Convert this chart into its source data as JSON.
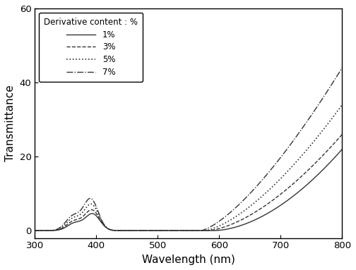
{
  "title": "",
  "xlabel": "Wavelength (nm)",
  "ylabel": "Transmittance",
  "xlim": [
    300,
    800
  ],
  "ylim": [
    -2,
    60
  ],
  "yticks": [
    0,
    20,
    40,
    60
  ],
  "xticks": [
    300,
    400,
    500,
    600,
    700,
    800
  ],
  "legend_title": "Derivative content : %",
  "series": [
    {
      "label": "1%",
      "linestyle": "solid",
      "color": "#333333",
      "linewidth": 1.0
    },
    {
      "label": "3%",
      "linestyle": "dashed",
      "color": "#333333",
      "linewidth": 1.0
    },
    {
      "label": "5%",
      "linestyle": "dotted",
      "color": "#333333",
      "linewidth": 1.2
    },
    {
      "label": "7%",
      "linestyle": "dashdot",
      "color": "#333333",
      "linewidth": 1.0
    }
  ],
  "background_color": "#ffffff",
  "figsize": [
    5.04,
    3.83
  ],
  "dpi": 100
}
